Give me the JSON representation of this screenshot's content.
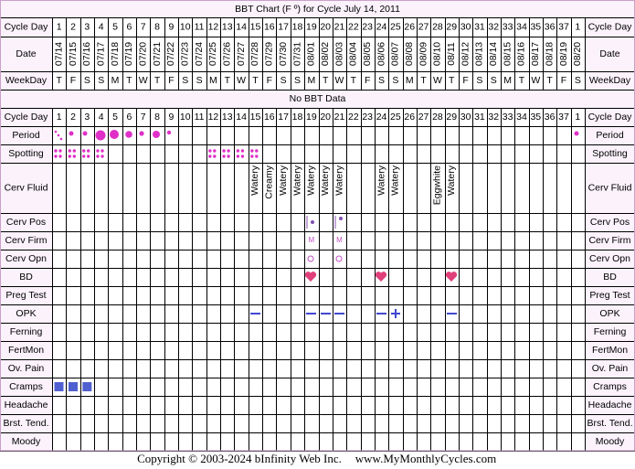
{
  "title": "BBT Chart (F º) for Cycle July 14, 2011",
  "header_rows": [
    "Cycle Day",
    "Date",
    "WeekDay"
  ],
  "cycle_days": [
    1,
    2,
    3,
    4,
    5,
    6,
    7,
    8,
    9,
    10,
    11,
    12,
    13,
    14,
    15,
    16,
    17,
    18,
    19,
    20,
    21,
    22,
    23,
    24,
    25,
    26,
    27,
    28,
    29,
    30,
    31,
    32,
    33,
    34,
    35,
    36,
    37,
    1
  ],
  "dates": [
    "07/14",
    "07/15",
    "07/16",
    "07/17",
    "07/18",
    "07/19",
    "07/20",
    "07/21",
    "07/22",
    "07/23",
    "07/24",
    "07/25",
    "07/26",
    "07/27",
    "07/28",
    "07/29",
    "07/30",
    "07/31",
    "08/01",
    "08/02",
    "08/03",
    "08/04",
    "08/05",
    "08/06",
    "08/07",
    "08/08",
    "08/09",
    "08/10",
    "08/11",
    "08/12",
    "08/13",
    "08/14",
    "08/15",
    "08/16",
    "08/17",
    "08/18",
    "08/19",
    "08/20"
  ],
  "weekdays": [
    "T",
    "F",
    "S",
    "S",
    "M",
    "T",
    "W",
    "T",
    "F",
    "S",
    "S",
    "M",
    "T",
    "W",
    "T",
    "F",
    "S",
    "S",
    "M",
    "T",
    "W",
    "T",
    "F",
    "S",
    "S",
    "M",
    "T",
    "W",
    "T",
    "F",
    "S",
    "S",
    "M",
    "T",
    "W",
    "T",
    "F",
    "S"
  ],
  "no_data": "No BBT Data",
  "tracking_rows": [
    "Cycle Day",
    "Period",
    "Spotting",
    "Cerv Fluid",
    "Cerv Pos",
    "Cerv Firm",
    "Cerv Opn",
    "BD",
    "Preg Test",
    "OPK",
    "Ferning",
    "FertMon",
    "Ov. Pain",
    "Cramps",
    "Headache",
    "Brst. Tend.",
    "Moody"
  ],
  "cerv_fluid": [
    null,
    null,
    null,
    null,
    null,
    null,
    null,
    null,
    null,
    null,
    null,
    null,
    null,
    null,
    "Watery",
    "Creamy",
    "Watery",
    "Watery",
    "Watery",
    "Watery",
    "Watery",
    null,
    null,
    "Watery",
    "Watery",
    null,
    null,
    "Eggwhite",
    "Watery",
    null,
    null,
    null,
    null,
    null,
    null,
    null,
    null,
    null
  ],
  "cerv_firm": [
    null,
    null,
    null,
    null,
    null,
    null,
    null,
    null,
    null,
    null,
    null,
    null,
    null,
    null,
    null,
    null,
    null,
    null,
    "M",
    null,
    "M",
    null,
    null,
    null,
    null,
    null,
    null,
    null,
    null,
    null,
    null,
    null,
    null,
    null,
    null,
    null,
    null,
    null
  ],
  "footer": {
    "copyright": "Copyright © 2003-2024 bInfinity Web Inc.",
    "site": "www.MyMonthlyCycles.com"
  }
}
